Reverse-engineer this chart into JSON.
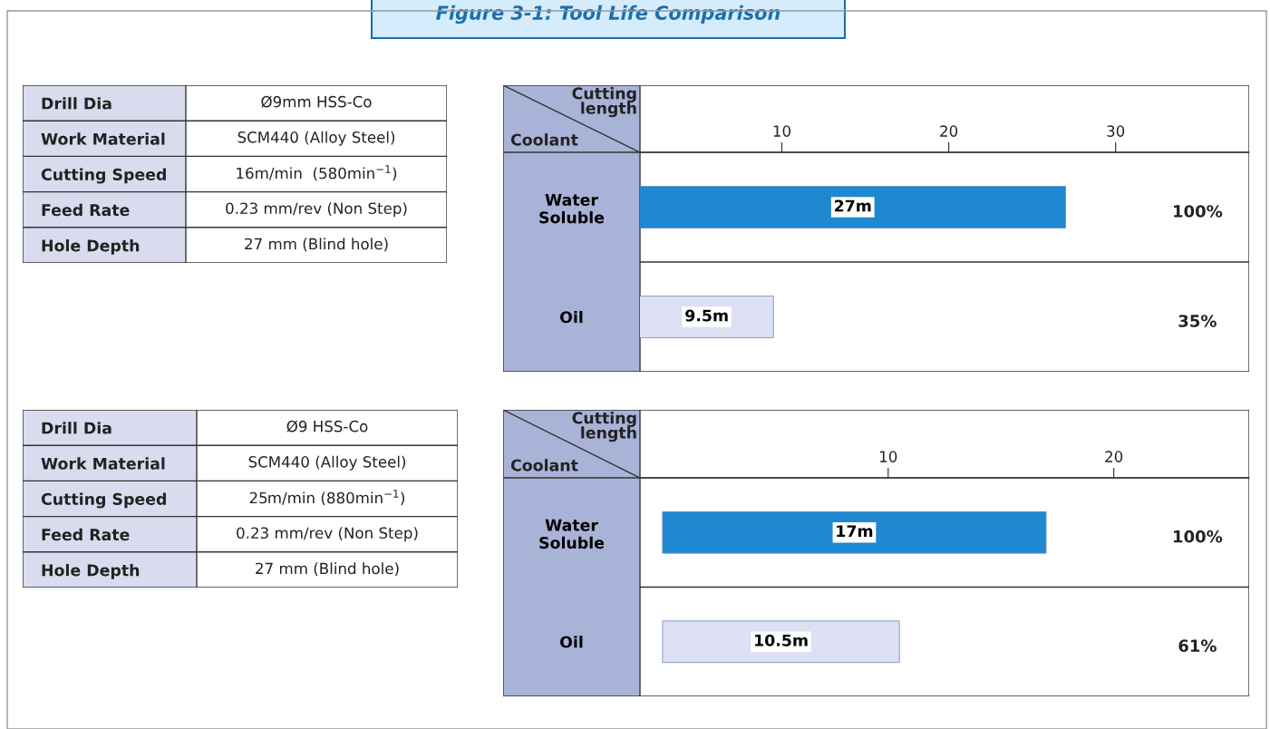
{
  "chart_data": [
    {
      "type": "other",
      "title": "Figure 3-1: Tool Life Comparison",
      "annotations": [
        "Drill Dia",
        "Ø9mm HSS-Co",
        "Work Material",
        "SCM440 (Alloy Steel)",
        "Cutting Speed",
        "16m/min  (580min$^{−1}$)",
        "Feed Rate",
        "0.23 mm/rev (Non Step)",
        "Hole Depth",
        "27 mm (Blind hole)"
      ]
    },
    {
      "type": "bar",
      "orientation": "horizontal",
      "xlabel": "Cutting\nlength",
      "ylabel": "Coolant",
      "categories": [
        "Water\nSoluble",
        "Oil"
      ],
      "values": [
        27,
        9.5
      ],
      "colors": [
        "#1e88d0",
        "#dde0f2"
      ],
      "value_labels": [
        "27m",
        "9.5m"
      ],
      "xlim": [
        1.5,
        38
      ],
      "xticks": [
        10,
        20,
        30
      ],
      "annotations": [
        "100%",
        "35%"
      ]
    },
    {
      "type": "other",
      "annotations": [
        "Drill Dia",
        "Ø9 HSS-Co",
        "Work Material",
        "SCM440 (Alloy Steel)",
        "Cutting Speed",
        "25m/min (880min$^{−1}$)",
        "Feed Rate",
        "0.23 mm/rev (Non Step)",
        "Hole Depth",
        "27 mm (Blind hole)"
      ]
    },
    {
      "type": "bar",
      "orientation": "horizontal",
      "xlabel": "Cutting\nlength",
      "ylabel": "Coolant",
      "categories": [
        "Water\nSoluble",
        "Oil"
      ],
      "values": [
        17,
        10.5
      ],
      "colors": [
        "#1e88d0",
        "#dde0f2"
      ],
      "value_labels": [
        "17m",
        "10.5m"
      ],
      "xlim": [
        -1,
        26
      ],
      "xticks": [
        10,
        20
      ],
      "annotations": [
        "100%",
        "61%"
      ]
    }
  ]
}
